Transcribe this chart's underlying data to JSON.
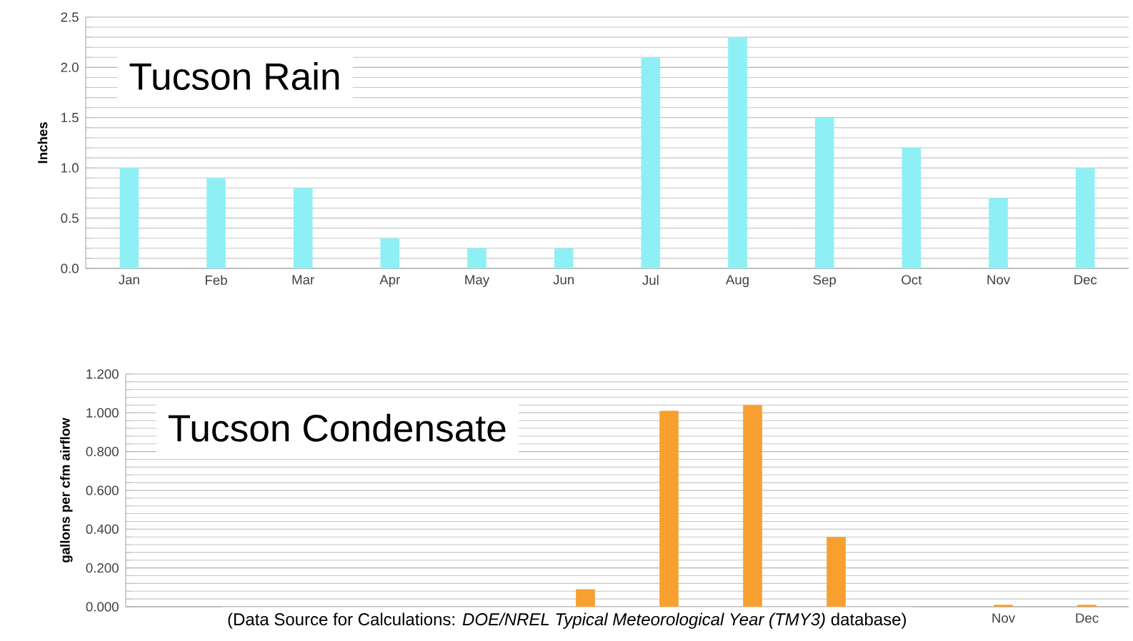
{
  "chart_data": [
    {
      "type": "bar",
      "title": "Tucson Rain",
      "ylabel": "Inches",
      "categories": [
        "Jan",
        "Feb",
        "Mar",
        "Apr",
        "May",
        "Jun",
        "Jul",
        "Aug",
        "Sep",
        "Oct",
        "Nov",
        "Dec"
      ],
      "values": [
        1.0,
        0.9,
        0.8,
        0.3,
        0.2,
        0.2,
        2.1,
        2.3,
        1.5,
        1.2,
        0.7,
        1.0
      ],
      "color": "#8ef0f4",
      "ylim": [
        0,
        2.5
      ],
      "yticks": [
        {
          "value": 0,
          "label": "0.0"
        },
        {
          "value": 0.5,
          "label": "0.5"
        },
        {
          "value": 1.0,
          "label": "1.0"
        },
        {
          "value": 1.5,
          "label": "1.5"
        },
        {
          "value": 2.0,
          "label": "2.0"
        },
        {
          "value": 2.5,
          "label": "2.5"
        }
      ],
      "grid": "y"
    },
    {
      "type": "bar",
      "title": "Tucson Condensate",
      "ylabel": "gallons per cfm airflow",
      "categories": [
        null,
        null,
        null,
        null,
        null,
        null,
        null,
        null,
        null,
        null,
        "Nov",
        "Dec"
      ],
      "values": [
        null,
        null,
        null,
        null,
        null,
        0.09,
        1.01,
        1.04,
        0.36,
        null,
        0.01,
        0.01
      ],
      "color": "#f7a030",
      "ylim": [
        0,
        1.2
      ],
      "yticks": [
        {
          "value": 0,
          "label": "0.000"
        },
        {
          "value": 0.2,
          "label": "0.200"
        },
        {
          "value": 0.4,
          "label": "0.400"
        },
        {
          "value": 0.6,
          "label": "0.600"
        },
        {
          "value": 0.8,
          "label": "0.800"
        },
        {
          "value": 1.0,
          "label": "1.000"
        },
        {
          "value": 1.2,
          "label": "1.200"
        }
      ],
      "grid": "y",
      "annotations": [
        "(Data Source for Calculations: *DOE/NREL Typical Meteorological Year (TMY3)* database)"
      ]
    }
  ]
}
